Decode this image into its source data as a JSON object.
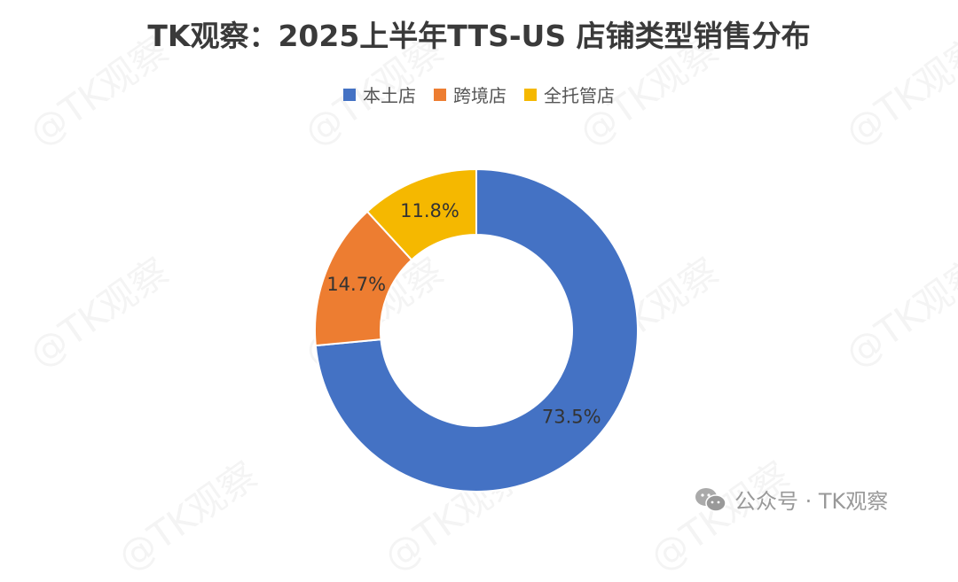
{
  "watermark": "@TK观察",
  "footer": {
    "text": "公众号 · TK观察"
  },
  "chart_data": {
    "type": "pie",
    "variant": "donut",
    "title": "TK观察：2025上半年TTS-US 店铺类型销售分布",
    "legend_position": "top",
    "categories": [
      "本土店",
      "跨境店",
      "全托管店"
    ],
    "values": [
      73.5,
      14.7,
      11.8
    ],
    "labels": [
      "73.5%",
      "14.7%",
      "11.8%"
    ],
    "colors": [
      "#4472C4",
      "#ED7D31",
      "#F5B800"
    ]
  }
}
